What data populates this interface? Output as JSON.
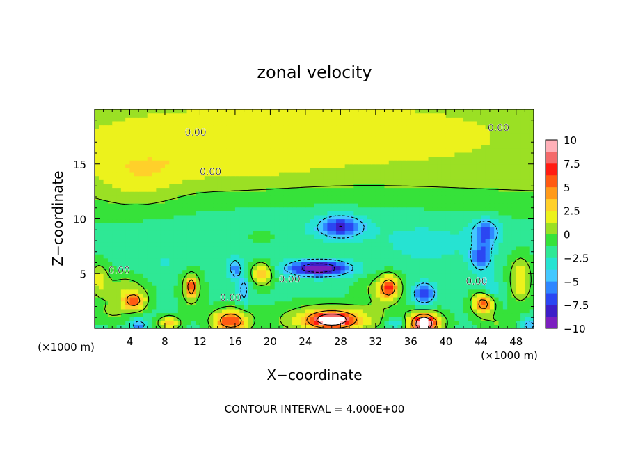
{
  "chart_data": {
    "type": "heatmap",
    "title": "zonal velocity",
    "xlabel": "X−coordinate",
    "ylabel": "Z−coordinate",
    "x_unit_left": "(×1000 m)",
    "x_unit_right": "(×1000 m)",
    "footer": "CONTOUR INTERVAL = 4.000E+00",
    "xlim": [
      0,
      50
    ],
    "ylim": [
      0,
      20
    ],
    "x_ticks": [
      "4",
      "8",
      "12",
      "16",
      "20",
      "24",
      "28",
      "32",
      "36",
      "40",
      "44",
      "48"
    ],
    "y_ticks": [
      "5",
      "10",
      "15"
    ],
    "contour_label": "0.00",
    "colorbar": {
      "min": -10,
      "max": 10,
      "ticks": [
        "10",
        "7.5",
        "5",
        "2.5",
        "0",
        "−2.5",
        "−5",
        "−7.5",
        "−10"
      ],
      "colors": [
        "#7b1fbf",
        "#3d1ec8",
        "#2b46f2",
        "#2f86ff",
        "#44c8ff",
        "#26e3d2",
        "#2ee895",
        "#36e23a",
        "#9be024",
        "#ecf21c",
        "#ffd02a",
        "#ff9a1a",
        "#ff5a12",
        "#ff1c12",
        "#f46a6a",
        "#ffb0b8"
      ]
    },
    "features": [
      {
        "x": 5,
        "z": 13.5,
        "rx": 4.5,
        "rz": 2.5,
        "u": 1.6
      },
      {
        "x": 15,
        "z": 15.5,
        "rx": 10,
        "rz": 2.5,
        "u": 1.2
      },
      {
        "x": 30,
        "z": 17.5,
        "rx": 9,
        "rz": 1.5,
        "u": 0.9
      },
      {
        "x": 28,
        "z": 9.3,
        "rx": 2.5,
        "rz": 1.0,
        "u": -6
      },
      {
        "x": 44.5,
        "z": 8.8,
        "rx": 1.5,
        "rz": 1.2,
        "u": -5
      },
      {
        "x": 44,
        "z": 6.5,
        "rx": 1.2,
        "rz": 1.3,
        "u": -5
      },
      {
        "x": 25.5,
        "z": 5.5,
        "rx": 3.5,
        "rz": 0.7,
        "u": -9
      },
      {
        "x": 16,
        "z": 5.5,
        "rx": 0.8,
        "rz": 1.0,
        "u": -4
      },
      {
        "x": 17,
        "z": 3.5,
        "rx": 0.7,
        "rz": 1.3,
        "u": -3.5
      },
      {
        "x": 37.5,
        "z": 3.2,
        "rx": 1.3,
        "rz": 1.0,
        "u": -6
      },
      {
        "x": 45,
        "z": 3.5,
        "rx": 1.2,
        "rz": 1.2,
        "u": -2.5
      },
      {
        "x": 3.5,
        "z": 3.5,
        "rx": 2.5,
        "rz": 1.5,
        "u": 2.5
      },
      {
        "x": 4.5,
        "z": 2.5,
        "rx": 1.2,
        "rz": 0.8,
        "u": 6
      },
      {
        "x": 11,
        "z": 3.8,
        "rx": 1.2,
        "rz": 1.8,
        "u": 3
      },
      {
        "x": 11,
        "z": 3.8,
        "rx": 0.5,
        "rz": 0.8,
        "u": 6
      },
      {
        "x": 19,
        "z": 5.0,
        "rx": 1.2,
        "rz": 1.0,
        "u": 5
      },
      {
        "x": 19,
        "z": 8.5,
        "rx": 1.5,
        "rz": 0.7,
        "u": 1.5
      },
      {
        "x": 33,
        "z": 3.5,
        "rx": 2.5,
        "rz": 1.5,
        "u": 2.5
      },
      {
        "x": 33.5,
        "z": 3.8,
        "rx": 1.0,
        "rz": 1.0,
        "u": 6
      },
      {
        "x": 44.3,
        "z": 2.3,
        "rx": 1.2,
        "rz": 1.0,
        "u": 7.5
      },
      {
        "x": 48.5,
        "z": 4.5,
        "rx": 1.2,
        "rz": 2.0,
        "u": 4
      },
      {
        "x": 0.5,
        "z": 4.5,
        "rx": 1.0,
        "rz": 1.5,
        "u": 3
      },
      {
        "x": 15.5,
        "z": 0.7,
        "rx": 2.0,
        "rz": 1.0,
        "u": 8
      },
      {
        "x": 27,
        "z": 0.8,
        "rx": 5.0,
        "rz": 1.2,
        "u": 6
      },
      {
        "x": 27,
        "z": 0.8,
        "rx": 2.0,
        "rz": 0.6,
        "u": 9
      },
      {
        "x": 37.5,
        "z": 0.5,
        "rx": 2.0,
        "rz": 1.0,
        "u": 9
      },
      {
        "x": 37.5,
        "z": 0.4,
        "rx": 0.7,
        "rz": 0.5,
        "u": 12
      },
      {
        "x": 8.5,
        "z": 0.5,
        "rx": 1.2,
        "rz": 0.6,
        "u": 5
      },
      {
        "x": 2,
        "z": 1.5,
        "rx": 2.0,
        "rz": 1.0,
        "u": 1.5
      },
      {
        "x": 46,
        "z": 0.5,
        "rx": 2.0,
        "rz": 0.8,
        "u": 1.5
      },
      {
        "x": 5,
        "z": 0.3,
        "rx": 1.0,
        "rz": 0.6,
        "u": -4
      },
      {
        "x": 49.5,
        "z": 0.3,
        "rx": 0.8,
        "rz": 0.6,
        "u": -4
      },
      {
        "x": 34.5,
        "z": 0.5,
        "rx": 1.2,
        "rz": 0.6,
        "u": -3.5
      },
      {
        "x": 8,
        "z": 6.0,
        "rx": 4.0,
        "rz": 1.5,
        "u": -1.0
      },
      {
        "x": 38,
        "z": 7.5,
        "rx": 6.0,
        "rz": 2.0,
        "u": -1.2
      },
      {
        "x": 25,
        "z": 10.5,
        "rx": 20,
        "rz": 3.0,
        "u": -0.8
      }
    ],
    "base_field": {
      "u0": -1.5,
      "z_top_value": 1.2
    },
    "zero_contour_labels": [
      {
        "x": 11.5,
        "z": 17.6
      },
      {
        "x": 13.2,
        "z": 14.0
      },
      {
        "x": 46.0,
        "z": 18.0
      },
      {
        "x": 2.8,
        "z": 5.0
      },
      {
        "x": 22.2,
        "z": 4.2
      },
      {
        "x": 15.5,
        "z": 2.5
      },
      {
        "x": 43.5,
        "z": 4.0
      }
    ]
  }
}
